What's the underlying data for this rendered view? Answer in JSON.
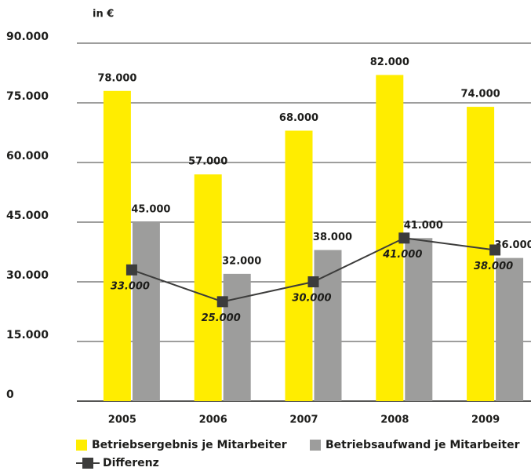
{
  "chart_data": {
    "type": "bar",
    "y_axis_label": "in €",
    "categories": [
      "2005",
      "2006",
      "2007",
      "2008",
      "2009"
    ],
    "series": [
      {
        "name": "Betriebsergebnis je Mitarbeiter",
        "color": "#ffed00",
        "values": [
          78000,
          57000,
          68000,
          82000,
          74000
        ],
        "value_labels": [
          "78.000",
          "57.000",
          "68.000",
          "82.000",
          "74.000"
        ]
      },
      {
        "name": "Betriebsaufwand je Mitarbeiter",
        "color": "#9d9d9c",
        "values": [
          45000,
          32000,
          38000,
          41000,
          36000
        ],
        "value_labels": [
          "45.000",
          "32.000",
          "38.000",
          "41.000",
          "36.000"
        ]
      },
      {
        "name": "Differenz",
        "type": "line",
        "color": "#3c3c3b",
        "values": [
          33000,
          25000,
          30000,
          41000,
          38000
        ],
        "value_labels": [
          "33.000",
          "25.000",
          "30.000",
          "41.000",
          "38.000"
        ]
      }
    ],
    "ylim": [
      0,
      90000
    ],
    "yticks": [
      0,
      {
        "value": 15000,
        "label": "15.000"
      },
      {
        "value": 30000,
        "label": "30.000"
      },
      {
        "value": 45000,
        "label": "45.000"
      },
      {
        "value": 60000,
        "label": "60.000"
      },
      {
        "value": 75000,
        "label": "75.000"
      },
      {
        "value": 90000,
        "label": "90.000"
      }
    ],
    "grid": true
  }
}
